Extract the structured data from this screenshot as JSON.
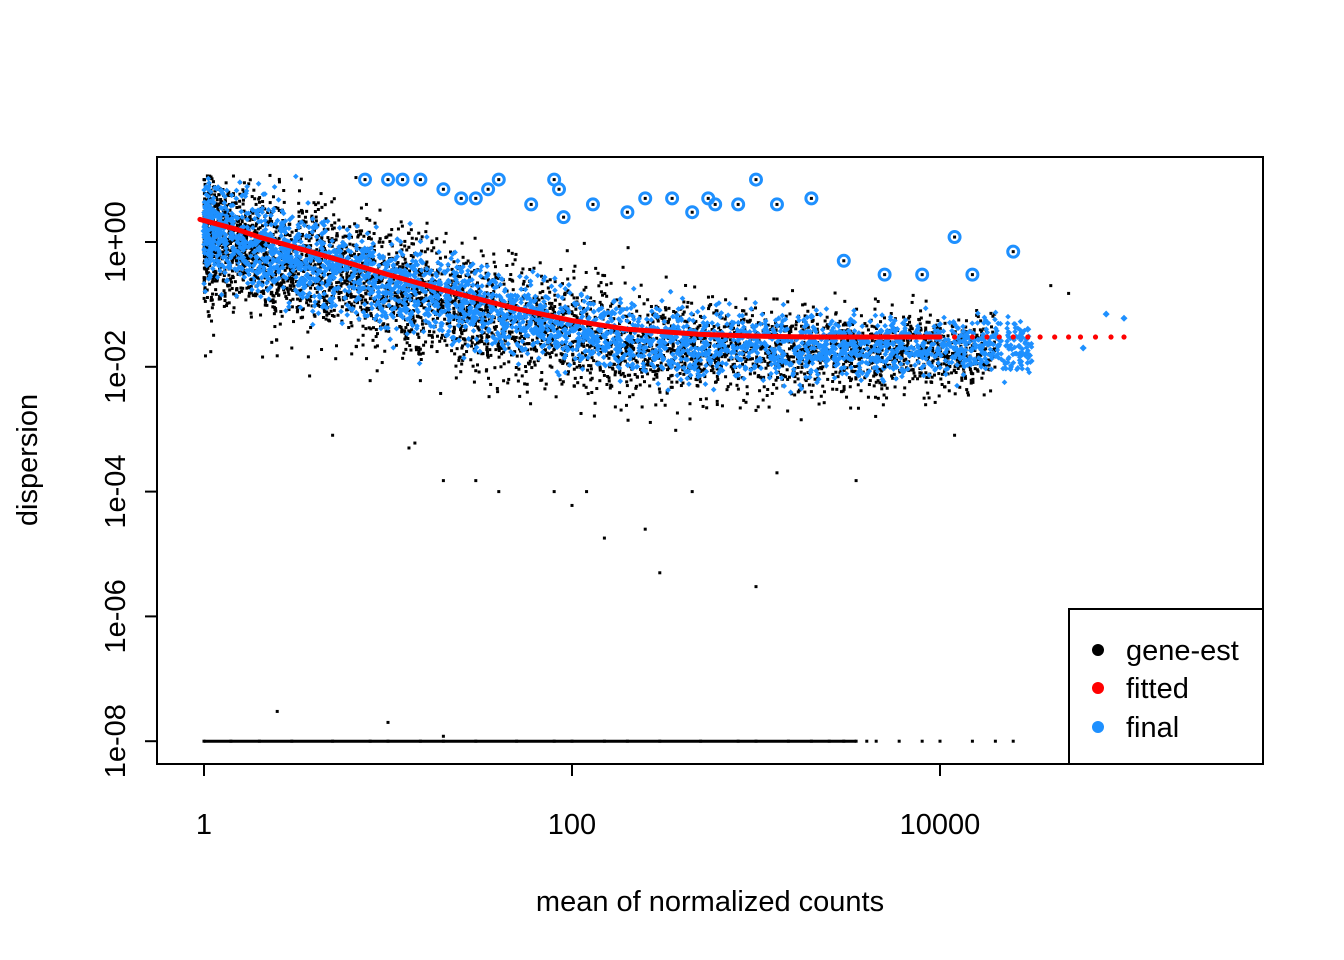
{
  "chart_data": {
    "type": "scatter",
    "title": "",
    "xlabel": "mean of normalized counts",
    "ylabel": "dispersion",
    "x_scale": "log10",
    "y_scale": "log10",
    "xlim": [
      0.6,
      130000
    ],
    "ylim": [
      3e-09,
      30
    ],
    "x_ticks": [
      {
        "value": 1,
        "label": "1"
      },
      {
        "value": 100,
        "label": "100"
      },
      {
        "value": 10000,
        "label": "10000"
      }
    ],
    "y_ticks": [
      {
        "value": 1,
        "label": "1e+00"
      },
      {
        "value": 0.01,
        "label": "1e-02"
      },
      {
        "value": 0.0001,
        "label": "1e-04"
      },
      {
        "value": 1e-06,
        "label": "1e-06"
      },
      {
        "value": 1e-08,
        "label": "1e-08"
      }
    ],
    "grid": false,
    "legend_position": "bottom-right",
    "legend": [
      {
        "label": "gene-est",
        "color": "#000000"
      },
      {
        "label": "fitted",
        "color": "#ff0000"
      },
      {
        "label": "final",
        "color": "#1e90ff"
      }
    ],
    "series": [
      {
        "name": "gene-est",
        "color": "#000000",
        "points": [
          [
            1.0,
            10.0
          ],
          [
            1.3,
            3.0
          ],
          [
            1.5,
            0.5
          ],
          [
            1.8,
            0.25
          ],
          [
            2.5,
            0.015
          ],
          [
            3.0,
            0.02
          ],
          [
            5.0,
            0.0008
          ],
          [
            8.0,
            0.006
          ],
          [
            13.0,
            0.0005
          ],
          [
            14.0,
            0.0006
          ],
          [
            15.0,
            0.006
          ],
          [
            20.0,
            0.00015
          ],
          [
            30.0,
            0.00015
          ],
          [
            40.0,
            0.0001
          ],
          [
            80.0,
            0.0001
          ],
          [
            100.0,
            6e-05
          ],
          [
            120.0,
            0.0001
          ],
          [
            150.0,
            1.8e-05
          ],
          [
            250.0,
            2.5e-05
          ],
          [
            300.0,
            5e-06
          ],
          [
            450.0,
            0.0001
          ],
          [
            1000.0,
            3e-06
          ],
          [
            1300.0,
            0.0002
          ],
          [
            3500.0,
            0.00015
          ],
          [
            12000.0,
            0.0008
          ],
          [
            40000.0,
            0.2
          ],
          [
            50000.0,
            0.15
          ],
          [
            2.5,
            3e-08
          ],
          [
            10.0,
            2e-08
          ],
          [
            20.0,
            1.2e-08
          ],
          [
            200.0,
            0.005
          ],
          [
            500.0,
            0.003
          ],
          [
            1000.0,
            0.002
          ],
          [
            2000.0,
            0.004
          ],
          [
            5000.0,
            0.01
          ]
        ],
        "zero_dispersion_points": {
          "y": 1e-08,
          "x": [
            1.0,
            1.4,
            2.0,
            3.0,
            5.0,
            8.0,
            10.0,
            15.0,
            20.0,
            30.0,
            50.0,
            80.0,
            100.0,
            150.0,
            200.0,
            300.0,
            500.0,
            800.0,
            1000.0,
            1500.0,
            2000.0,
            2500.0,
            3000.0,
            3500.0,
            4000.0,
            4500.0,
            6000.0,
            8000.0,
            10000.0,
            15000.0,
            20000.0,
            25000.0
          ]
        }
      },
      {
        "name": "fitted",
        "color": "#ff0000",
        "points": [
          [
            0.95,
            2.3
          ],
          [
            1.5,
            1.6
          ],
          [
            2.0,
            1.2
          ],
          [
            3.0,
            0.85
          ],
          [
            5.0,
            0.55
          ],
          [
            10.0,
            0.3
          ],
          [
            20.0,
            0.17
          ],
          [
            50.0,
            0.085
          ],
          [
            100.0,
            0.055
          ],
          [
            200.0,
            0.04
          ],
          [
            500.0,
            0.033
          ],
          [
            1000.0,
            0.031
          ],
          [
            2000.0,
            0.03
          ],
          [
            5000.0,
            0.03
          ],
          [
            10000.0,
            0.03
          ],
          [
            20000.0,
            0.03
          ],
          [
            50000.0,
            0.03
          ],
          [
            100000.0,
            0.03
          ]
        ]
      },
      {
        "name": "final",
        "color": "#1e90ff",
        "points": [
          [
            1.0,
            1.5
          ],
          [
            1.5,
            1.2
          ],
          [
            2.0,
            0.8
          ],
          [
            5.0,
            0.4
          ],
          [
            10.0,
            0.2
          ],
          [
            30.0,
            0.08
          ],
          [
            100.0,
            0.04
          ],
          [
            300.0,
            0.025
          ],
          [
            1000.0,
            0.02
          ],
          [
            3000.0,
            0.025
          ],
          [
            10000.0,
            0.03
          ],
          [
            30000.0,
            0.04
          ],
          [
            60000.0,
            0.02
          ],
          [
            80000.0,
            0.07
          ],
          [
            100000.0,
            0.06
          ]
        ],
        "outliers_circled": [
          [
            7.5,
            10.0
          ],
          [
            10.0,
            10.0
          ],
          [
            12.0,
            10.0
          ],
          [
            15.0,
            10.0
          ],
          [
            20.0,
            7.0
          ],
          [
            25.0,
            5.0
          ],
          [
            30.0,
            5.0
          ],
          [
            35.0,
            7.0
          ],
          [
            40.0,
            10.0
          ],
          [
            60.0,
            4.0
          ],
          [
            80.0,
            10.0
          ],
          [
            85.0,
            7.0
          ],
          [
            90.0,
            2.5
          ],
          [
            130.0,
            4.0
          ],
          [
            200.0,
            3.0
          ],
          [
            250.0,
            5.0
          ],
          [
            350.0,
            5.0
          ],
          [
            450.0,
            3.0
          ],
          [
            550.0,
            5.0
          ],
          [
            600.0,
            4.0
          ],
          [
            800.0,
            4.0
          ],
          [
            1000.0,
            10.0
          ],
          [
            1300.0,
            4.0
          ],
          [
            2000.0,
            5.0
          ],
          [
            3000.0,
            0.5
          ],
          [
            5000.0,
            0.3
          ],
          [
            8000.0,
            0.3
          ],
          [
            12000.0,
            1.2
          ],
          [
            15000.0,
            0.3
          ],
          [
            25000.0,
            0.7
          ]
        ]
      }
    ]
  }
}
